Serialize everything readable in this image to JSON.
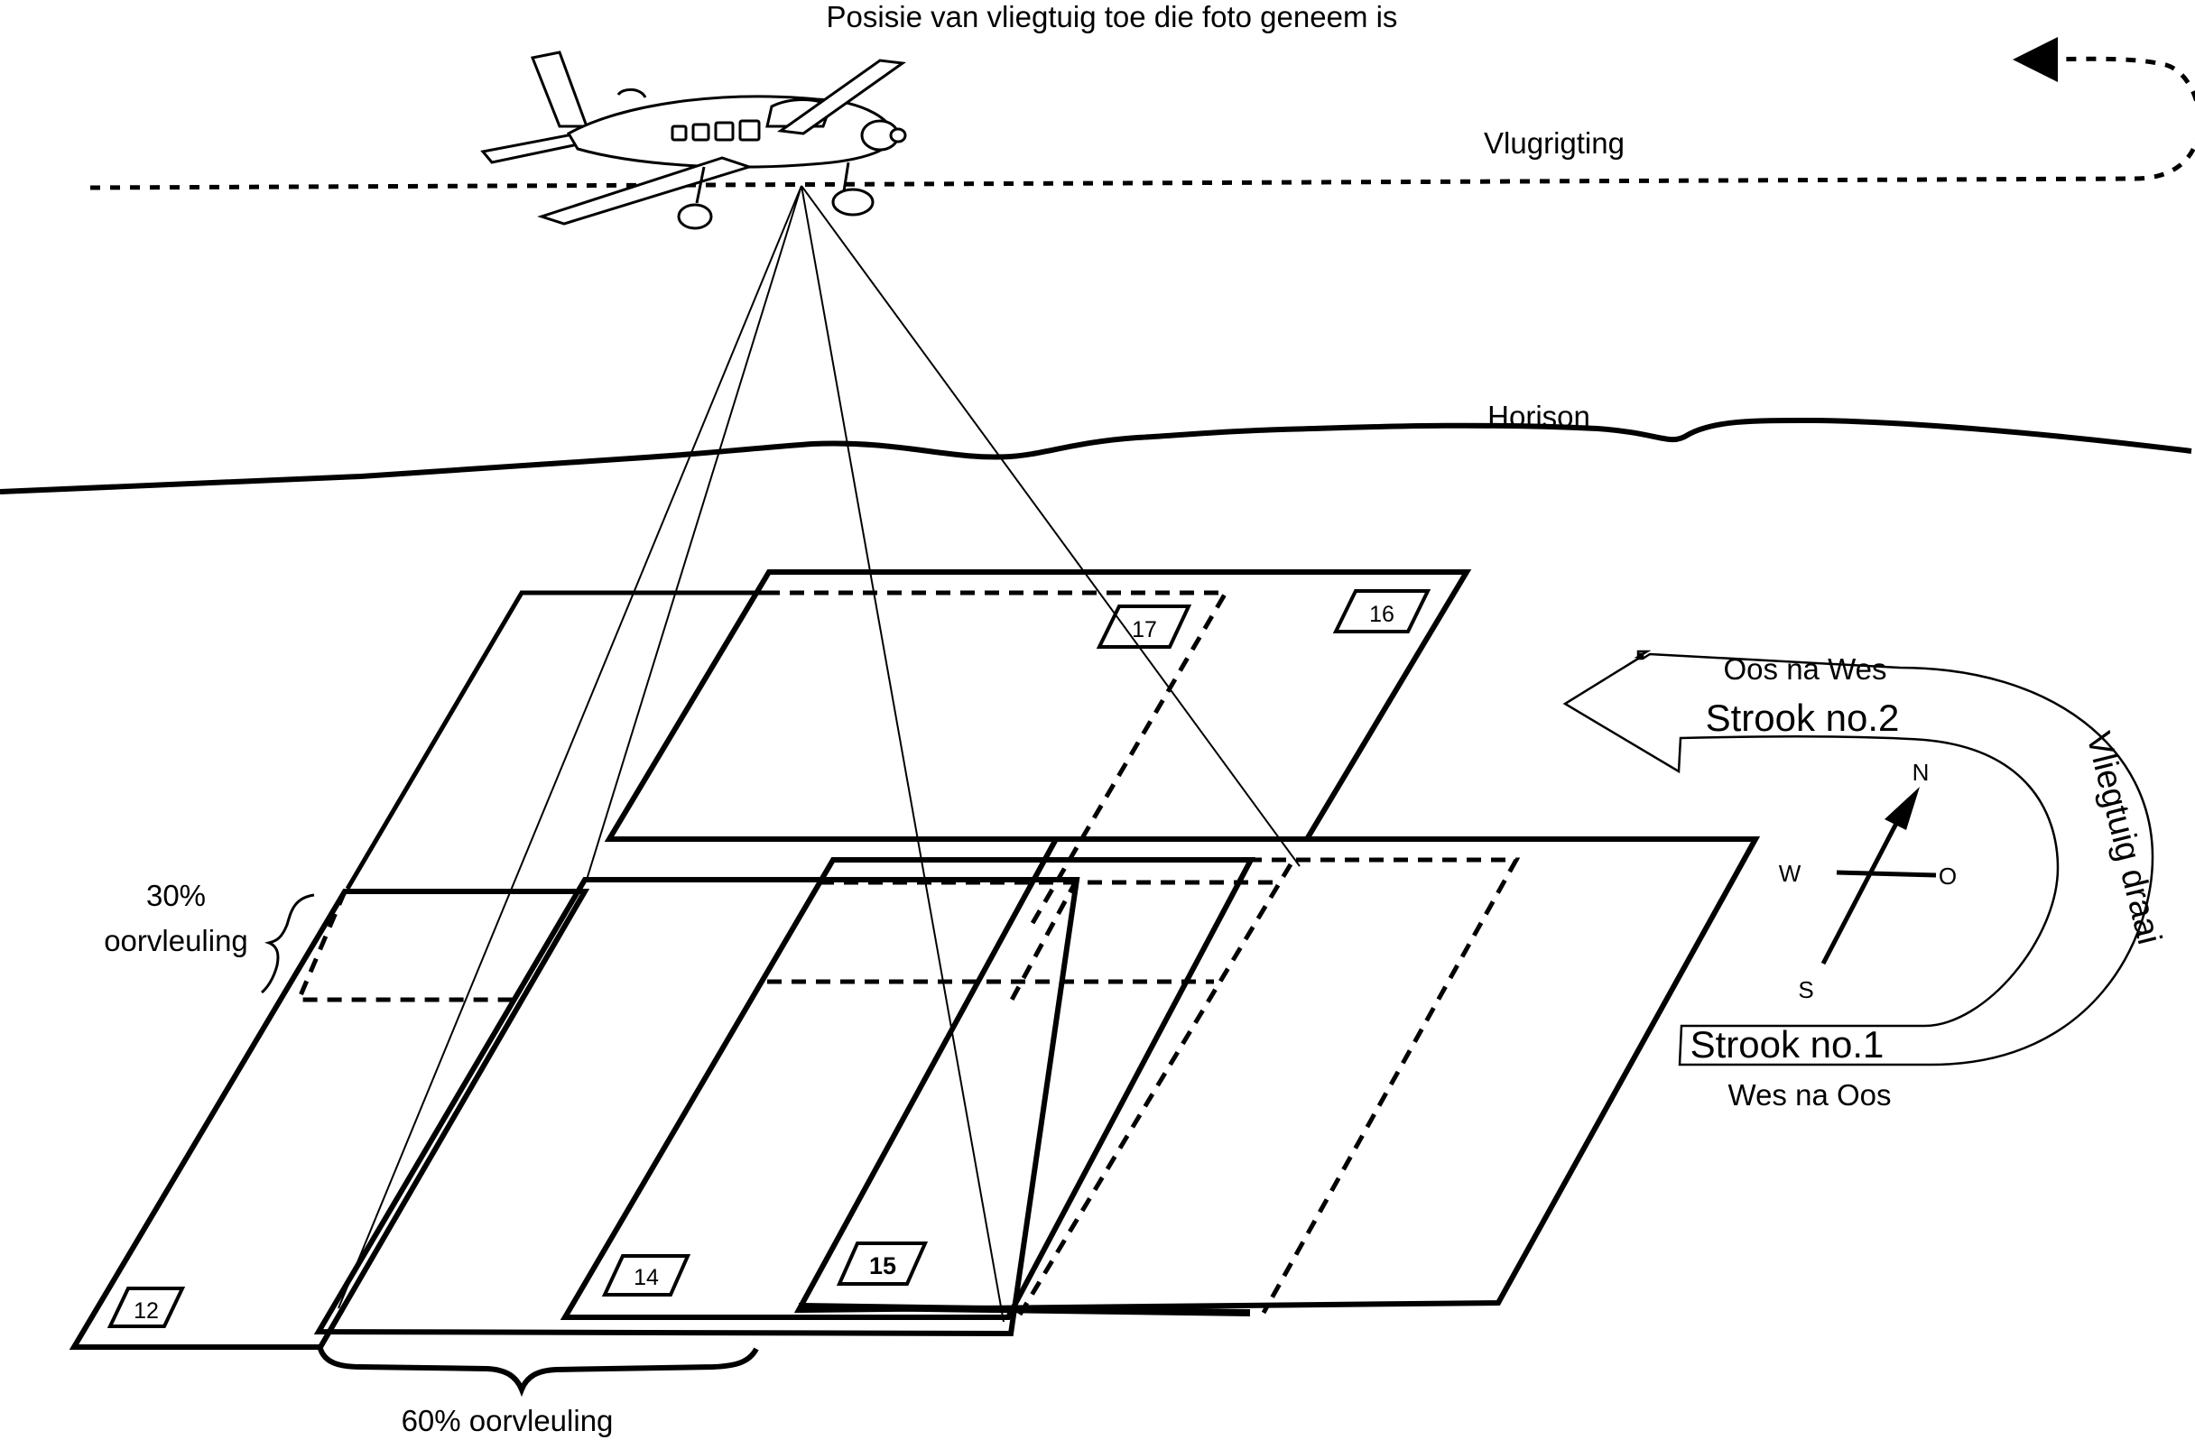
{
  "labels": {
    "aircraft_position": "Posisie van vliegtuig toe die foto geneem is",
    "flight_direction": "Vlugrigting",
    "horizon": "Horison",
    "side_overlap_pct": "30%",
    "side_overlap_word": "oorvleuling",
    "forward_overlap": "60% oorvleuling",
    "east_to_west": "Oos na Wes",
    "strip_2": "Strook no.2",
    "strip_1": "Strook no.1",
    "west_to_east": "Wes na Oos",
    "aircraft_turns": "Vliegtuig draai",
    "compass": {
      "n": "N",
      "o": "O",
      "w": "W",
      "s": "S"
    }
  },
  "photos": [
    "12",
    "14",
    "15",
    "16",
    "17"
  ],
  "colors": {
    "line": "#000000",
    "background": "#ffffff"
  }
}
